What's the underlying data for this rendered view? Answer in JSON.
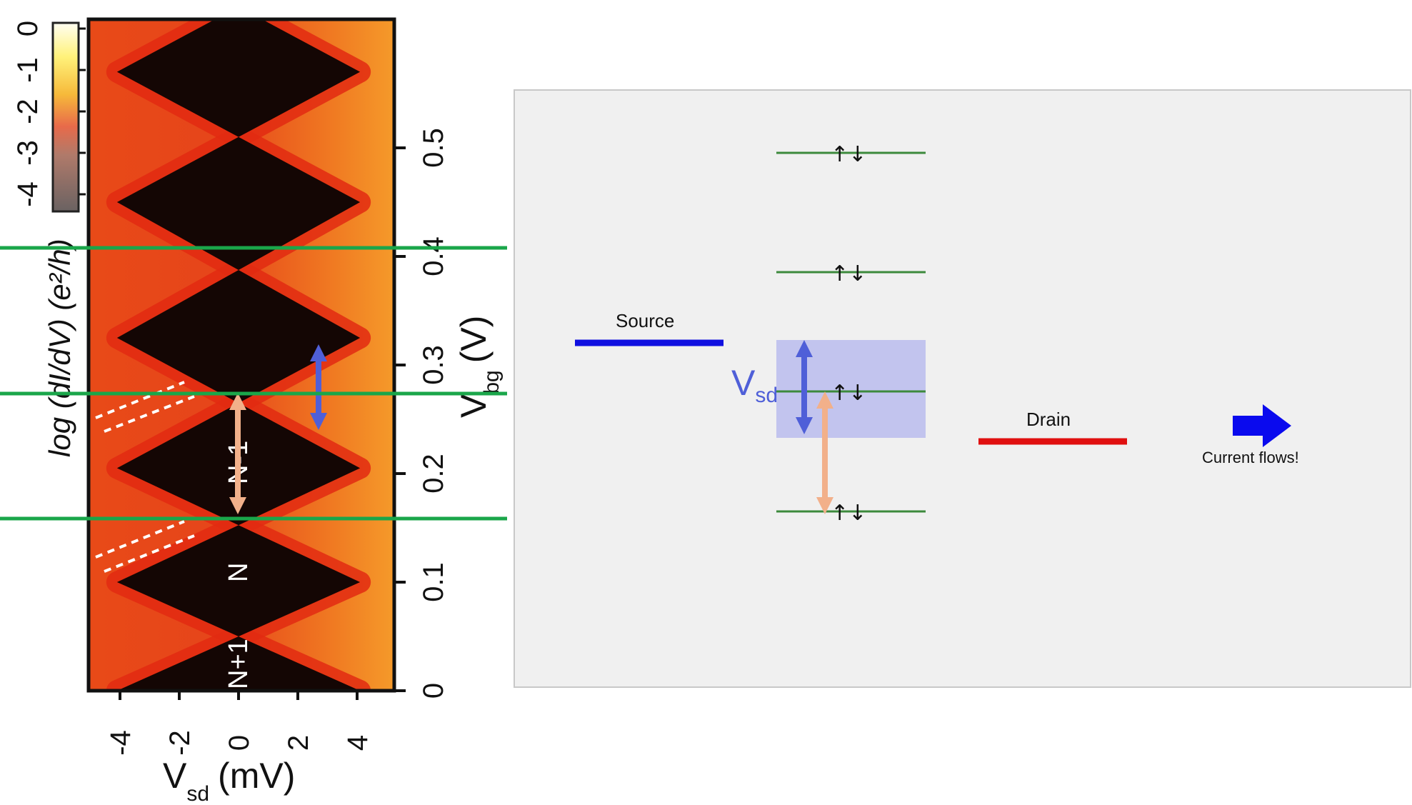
{
  "left_plot": {
    "colorbar": {
      "ticks": [
        "0",
        "-1",
        "-2",
        "-3",
        "-4"
      ],
      "label": "log (dI/dV) (e²/h)"
    },
    "x_axis": {
      "label_main": "V",
      "label_sub": "sd",
      "label_unit": "(mV)",
      "ticks": [
        "-4",
        "-2",
        "0",
        "2",
        "4"
      ]
    },
    "y_axis": {
      "label_main": "V",
      "label_sub": "bg",
      "label_unit": "(V)",
      "ticks": [
        "0",
        "0.1",
        "0.2",
        "0.3",
        "0.4",
        "0.5"
      ]
    },
    "diamond_labels": [
      "N-1",
      "N",
      "N+1"
    ],
    "diamond_centers_vbg": [
      0.0,
      0.1,
      0.205,
      0.325,
      0.45,
      0.57
    ],
    "colors": {
      "background": "#e8531a",
      "diamond": "#140604",
      "green_line": "#1aa64a",
      "blue_arrow": "#4f5fd8",
      "peach_arrow": "#f2b08a"
    }
  },
  "diagram": {
    "source_label": "Source",
    "drain_label": "Drain",
    "vsd_label_main": "V",
    "vsd_label_sub": "sd",
    "current_label": "Current flows!",
    "spin_symbols": "↑↓",
    "level_count": 4,
    "colors": {
      "panel_bg": "#f0f0f0",
      "source": "#1010e0",
      "drain": "#e01010",
      "level": "#3c8a3c",
      "window": "#b7b9ee",
      "current_arrow": "#0a0aee"
    }
  }
}
